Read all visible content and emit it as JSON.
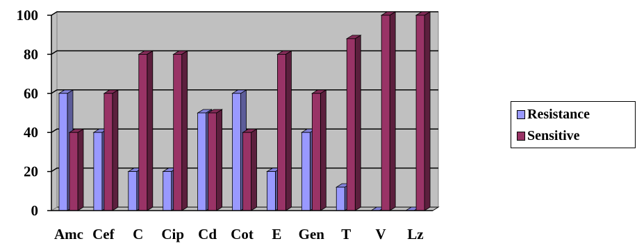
{
  "chart_data": {
    "type": "bar",
    "categories": [
      "Amc",
      "Cef",
      "C",
      "Cip",
      "Cd",
      "Cot",
      "E",
      "Gen",
      "T",
      "V",
      "Lz"
    ],
    "series": [
      {
        "name": "Resistance",
        "values": [
          60,
          40,
          20,
          20,
          50,
          60,
          20,
          40,
          12,
          0,
          0
        ],
        "color": "#9999ff"
      },
      {
        "name": "Sensitive",
        "values": [
          40,
          60,
          80,
          80,
          50,
          40,
          80,
          60,
          88,
          100,
          100
        ],
        "color": "#993366"
      }
    ],
    "ylim": [
      0,
      100
    ],
    "yticks": [
      0,
      20,
      40,
      60,
      80,
      100
    ],
    "grid": true,
    "three_d": true,
    "plot_background": "#c0c0c0",
    "legend_position": "right"
  }
}
